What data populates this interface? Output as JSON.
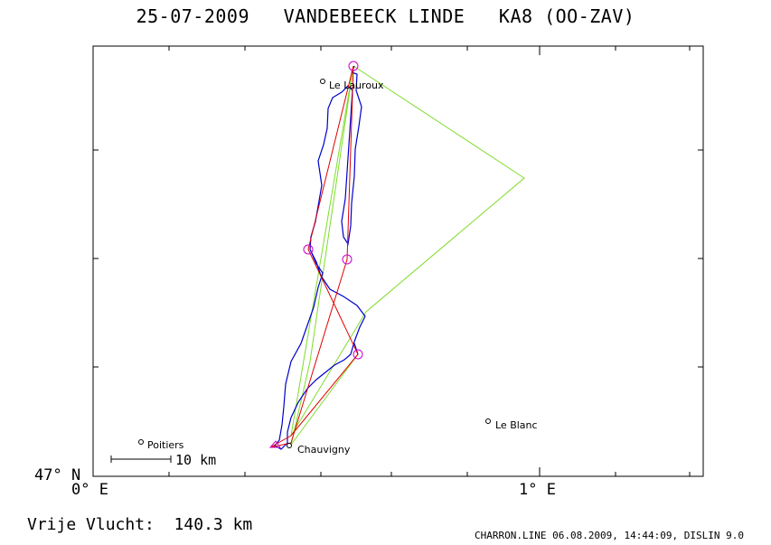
{
  "header": {
    "title": "25-07-2009   VANDEBEECK LINDE   KA8 (OO-ZAV)"
  },
  "axes": {
    "y_label": "47° N",
    "x_label_left": "0° E",
    "x_label_right": "1° E"
  },
  "towns": [
    {
      "name": "Le Lauroux"
    },
    {
      "name": "Poitiers"
    },
    {
      "name": "Chauvigny"
    },
    {
      "name": "Le Blanc"
    }
  ],
  "scale_bar": {
    "label": "10 km"
  },
  "footer": {
    "left": "Vrije Vlucht:  140.3 km",
    "right": "CHARRON.LINE 06.08.2009, 14:44:09, DISLIN 9.0"
  },
  "colors": {
    "track": "#0000cc",
    "task_red": "#e00000",
    "task_green": "#7fdc2a",
    "turnpoints": "#cc00cc"
  }
}
